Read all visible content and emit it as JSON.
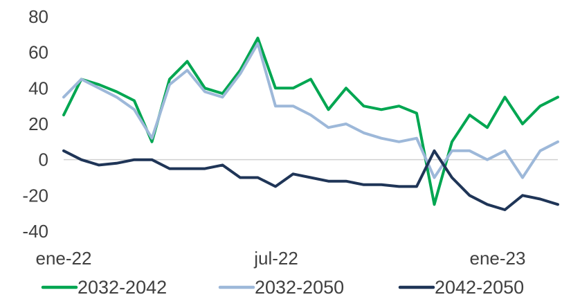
{
  "chart_data": {
    "type": "line",
    "title": "",
    "xlabel": "",
    "ylabel": "",
    "ylim": [
      -40,
      80
    ],
    "yticks": [
      "80",
      "60",
      "40",
      "20",
      "0",
      "-20",
      "-40"
    ],
    "xtick_labels": [
      "ene-22",
      "jul-22",
      "ene-23"
    ],
    "zero_line": true,
    "grid": false,
    "legend_position": "bottom",
    "x": [
      "2022-01-03",
      "2022-01-17",
      "2022-01-31",
      "2022-02-14",
      "2022-02-28",
      "2022-03-14",
      "2022-03-28",
      "2022-04-11",
      "2022-04-25",
      "2022-05-09",
      "2022-05-23",
      "2022-06-06",
      "2022-06-20",
      "2022-07-04",
      "2022-07-18",
      "2022-08-01",
      "2022-08-15",
      "2022-08-29",
      "2022-09-12",
      "2022-09-26",
      "2022-10-10",
      "2022-10-24",
      "2022-11-07",
      "2022-11-21",
      "2022-12-05",
      "2022-12-19",
      "2023-01-02",
      "2023-01-16",
      "2023-01-30"
    ],
    "series": [
      {
        "name": "2032-2042",
        "color": "#00a651",
        "values": [
          25,
          45,
          42,
          38,
          33,
          10,
          45,
          55,
          40,
          37,
          50,
          68,
          40,
          40,
          45,
          28,
          40,
          30,
          28,
          30,
          26,
          -25,
          10,
          25,
          18,
          35,
          20,
          30,
          35
        ]
      },
      {
        "name": "2032-2050",
        "color": "#9db8d9",
        "values": [
          35,
          45,
          40,
          35,
          28,
          12,
          42,
          50,
          38,
          35,
          48,
          65,
          30,
          30,
          25,
          18,
          20,
          15,
          12,
          10,
          12,
          -10,
          5,
          5,
          0,
          5,
          -10,
          5,
          10
        ]
      },
      {
        "name": "2042-2050",
        "color": "#1f3557",
        "values": [
          5,
          0,
          -3,
          -2,
          0,
          0,
          -5,
          -5,
          -5,
          -3,
          -10,
          -10,
          -15,
          -8,
          -10,
          -12,
          -12,
          -14,
          -14,
          -15,
          -15,
          5,
          -10,
          -20,
          -25,
          -28,
          -20,
          -22,
          -25
        ]
      }
    ]
  }
}
